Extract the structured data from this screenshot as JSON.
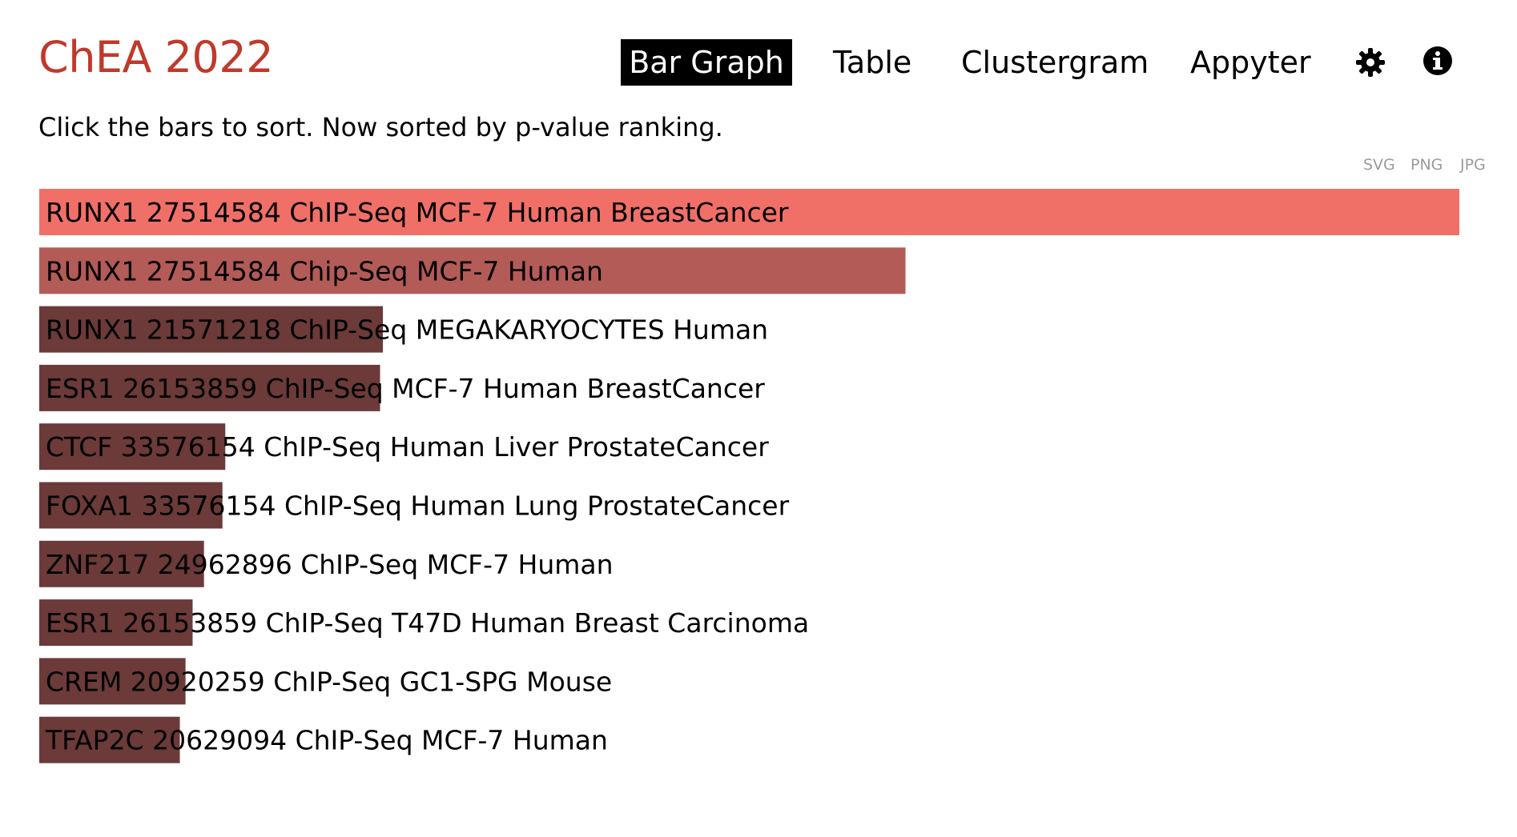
{
  "header": {
    "title": "ChEA 2022",
    "tabs": [
      {
        "label": "Bar Graph",
        "active": true
      },
      {
        "label": "Table",
        "active": false
      },
      {
        "label": "Clustergram",
        "active": false
      },
      {
        "label": "Appyter",
        "active": false
      }
    ],
    "icons": [
      "gear-icon",
      "info-icon"
    ]
  },
  "subtitle": "Click the bars to sort. Now sorted by p-value ranking.",
  "exports": [
    "SVG",
    "PNG",
    "JPG"
  ],
  "colors": {
    "title": "#c0392b",
    "bar_top": "#f07068",
    "bar_second": "#b35b57",
    "bar_rest": "#6b3a39"
  },
  "chart_data": {
    "type": "bar",
    "orientation": "horizontal",
    "title": "",
    "xlabel": "",
    "ylabel": "",
    "xlim": [
      0,
      100
    ],
    "grid": false,
    "legend": "none",
    "sorted_by": "p-value ranking",
    "categories": [
      "RUNX1 27514584 ChIP-Seq MCF-7 Human BreastCancer",
      "RUNX1 27514584 Chip-Seq MCF-7 Human",
      "RUNX1 21571218 ChIP-Seq MEGAKARYOCYTES Human",
      "ESR1 26153859 ChIP-Seq MCF-7 Human BreastCancer",
      "CTCF 33576154 ChIP-Seq Human Liver ProstateCancer",
      "FOXA1 33576154 ChIP-Seq Human Lung ProstateCancer",
      "ZNF217 24962896 ChIP-Seq MCF-7 Human",
      "ESR1 26153859 ChIP-Seq T47D Human Breast Carcinoma",
      "CREM 20920259 ChIP-Seq GC1-SPG Mouse",
      "TFAP2C 20629094 ChIP-Seq MCF-7 Human"
    ],
    "values": [
      100,
      61,
      24.2,
      24.0,
      13.1,
      12.9,
      11.6,
      10.8,
      10.3,
      9.9
    ],
    "bar_colors": [
      "#f07068",
      "#b35b57",
      "#6b3a39",
      "#6b3a39",
      "#6b3a39",
      "#6b3a39",
      "#6b3a39",
      "#6b3a39",
      "#6b3a39",
      "#6b3a39"
    ]
  }
}
